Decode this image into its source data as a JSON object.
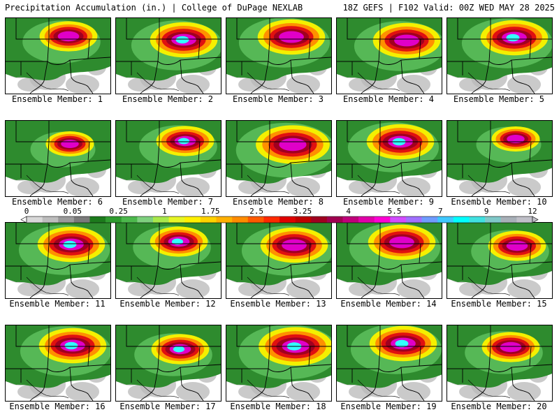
{
  "header": {
    "title_left": "Precipitation Accumulation (in.) | College of DuPage NEXLAB",
    "title_right": "18Z GEFS | F102 Valid: 00Z WED MAY 28 2025"
  },
  "panels": [
    {
      "label": "Ensemble Member: 1",
      "peak": "magenta",
      "spread": "medium"
    },
    {
      "label": "Ensemble Member: 2",
      "peak": "cyan",
      "spread": "large"
    },
    {
      "label": "Ensemble Member: 3",
      "peak": "magenta",
      "spread": "large"
    },
    {
      "label": "Ensemble Member: 4",
      "peak": "magenta",
      "spread": "large"
    },
    {
      "label": "Ensemble Member: 5",
      "peak": "cyan",
      "spread": "large"
    },
    {
      "label": "Ensemble Member: 6",
      "peak": "magenta",
      "spread": "small"
    },
    {
      "label": "Ensemble Member: 7",
      "peak": "cyan",
      "spread": "medium"
    },
    {
      "label": "Ensemble Member: 8",
      "peak": "magenta",
      "spread": "wide"
    },
    {
      "label": "Ensemble Member: 9",
      "peak": "cyan",
      "spread": "large"
    },
    {
      "label": "Ensemble Member: 10",
      "peak": "magenta",
      "spread": "small"
    },
    {
      "label": "Ensemble Member: 11",
      "peak": "cyan",
      "spread": "large"
    },
    {
      "label": "Ensemble Member: 12",
      "peak": "cyan",
      "spread": "medium"
    },
    {
      "label": "Ensemble Member: 13",
      "peak": "magenta",
      "spread": "large"
    },
    {
      "label": "Ensemble Member: 14",
      "peak": "magenta",
      "spread": "large"
    },
    {
      "label": "Ensemble Member: 15",
      "peak": "magenta",
      "spread": "medium"
    },
    {
      "label": "Ensemble Member: 16",
      "peak": "cyan",
      "spread": "large"
    },
    {
      "label": "Ensemble Member: 17",
      "peak": "cyan",
      "spread": "medium"
    },
    {
      "label": "Ensemble Member: 18",
      "peak": "cyan",
      "spread": "wide"
    },
    {
      "label": "Ensemble Member: 19",
      "peak": "cyan",
      "spread": "large"
    },
    {
      "label": "Ensemble Member: 20",
      "peak": "magenta",
      "spread": "medium"
    }
  ],
  "colorbar": {
    "ticks": [
      "0",
      "0.05",
      "0.25",
      "1",
      "1.75",
      "2.5",
      "3.25",
      "4",
      "5.5",
      "7",
      "9",
      "12"
    ],
    "colors": [
      "#d8d8d8",
      "#bdbdbd",
      "#9a9a9a",
      "#7a7a7a",
      "#1c7a1c",
      "#2f9c2f",
      "#4cb84c",
      "#7ed07e",
      "#a8e84a",
      "#e6f526",
      "#fff000",
      "#ffd200",
      "#ffb000",
      "#ff8c00",
      "#ff5a00",
      "#ff2a00",
      "#e00000",
      "#c00000",
      "#a00020",
      "#a00050",
      "#c0007a",
      "#e000a8",
      "#ff00d4",
      "#d24cff",
      "#a070ff",
      "#6f9cff",
      "#3fc8ff",
      "#00ffff",
      "#40e0e0",
      "#7fc8c8",
      "#a8b0b8",
      "#c0c0c8"
    ]
  },
  "palette": {
    "green": "#2e8b2e",
    "light_green": "#56b856",
    "yellow": "#f4f000",
    "orange": "#ff9000",
    "red": "#e01010",
    "dark_red": "#a00020",
    "magenta": "#e000c8",
    "cyan": "#33ffff",
    "gray": "#b8b8b8"
  }
}
